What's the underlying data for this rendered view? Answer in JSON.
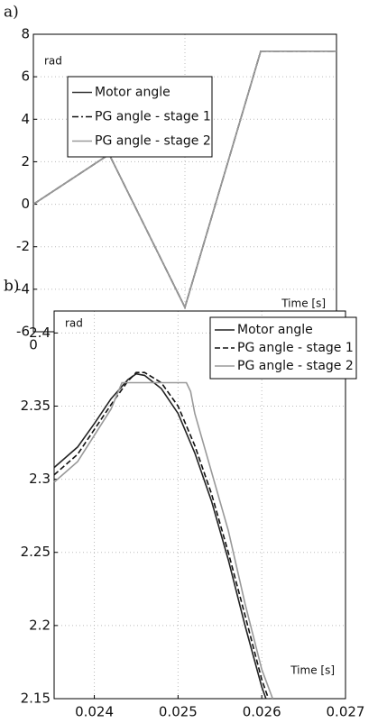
{
  "chart_data": [
    {
      "type": "line",
      "panel": "a)",
      "ylabel": "rad",
      "xlabel": "Time [s]",
      "xlim": [
        0,
        0.1
      ],
      "xticks": [
        0,
        0.05,
        0.1
      ],
      "ylim": [
        -6,
        8
      ],
      "yticks": [
        -6,
        -4,
        -2,
        0,
        2,
        4,
        6,
        8
      ],
      "grid": true,
      "legend": "upper left",
      "series": [
        {
          "name": "Motor angle",
          "color": "#333333",
          "dash": "solid",
          "x": [
            0,
            0.025,
            0.05,
            0.075,
            0.1
          ],
          "values": [
            0,
            2.35,
            -4.85,
            7.2,
            7.2
          ]
        },
        {
          "name": "PG angle - stage 1",
          "color": "#111111",
          "dash": "dashdot",
          "x": [
            0,
            0.025,
            0.05,
            0.075,
            0.1
          ],
          "values": [
            0,
            2.35,
            -4.85,
            7.2,
            7.2
          ]
        },
        {
          "name": "PG angle - stage 2",
          "color": "#999999",
          "dash": "solid",
          "x": [
            0,
            0.025,
            0.05,
            0.075,
            0.1
          ],
          "values": [
            0,
            2.35,
            -4.85,
            7.2,
            7.2
          ]
        }
      ]
    },
    {
      "type": "line",
      "panel": "b)",
      "ylabel": "rad",
      "xlabel": "Time [s]",
      "xlim": [
        0.02352,
        0.027
      ],
      "xticks": [
        0.024,
        0.025,
        0.026,
        0.027
      ],
      "ylim": [
        2.15,
        2.415
      ],
      "yticks": [
        2.15,
        2.2,
        2.25,
        2.3,
        2.35,
        2.4
      ],
      "grid": true,
      "legend": "upper right",
      "series": [
        {
          "name": "Motor angle",
          "color": "#222222",
          "dash": "solid",
          "x": [
            0.02352,
            0.0238,
            0.024,
            0.0242,
            0.0244,
            0.0245,
            0.0246,
            0.0248,
            0.025,
            0.0252,
            0.0254,
            0.0256,
            0.0258,
            0.026,
            0.02605
          ],
          "values": [
            2.308,
            2.322,
            2.338,
            2.355,
            2.368,
            2.372,
            2.371,
            2.362,
            2.345,
            2.318,
            2.285,
            2.245,
            2.2,
            2.158,
            2.15
          ]
        },
        {
          "name": "PG angle - stage 1",
          "color": "#111111",
          "dash": "dashed",
          "x": [
            0.02352,
            0.0238,
            0.024,
            0.0242,
            0.0244,
            0.0245,
            0.0246,
            0.0248,
            0.025,
            0.0252,
            0.0254,
            0.0256,
            0.0258,
            0.026,
            0.02608
          ],
          "values": [
            2.303,
            2.317,
            2.334,
            2.351,
            2.367,
            2.373,
            2.373,
            2.366,
            2.35,
            2.323,
            2.29,
            2.25,
            2.207,
            2.163,
            2.15
          ]
        },
        {
          "name": "PG angle - stage 2",
          "color": "#999999",
          "dash": "solid",
          "x": [
            0.02352,
            0.0238,
            0.024,
            0.0242,
            0.02433,
            0.0251,
            0.02515,
            0.0252,
            0.0254,
            0.0256,
            0.0258,
            0.026,
            0.02613
          ],
          "values": [
            2.298,
            2.312,
            2.33,
            2.348,
            2.366,
            2.366,
            2.36,
            2.345,
            2.305,
            2.265,
            2.215,
            2.17,
            2.15
          ]
        }
      ]
    }
  ]
}
